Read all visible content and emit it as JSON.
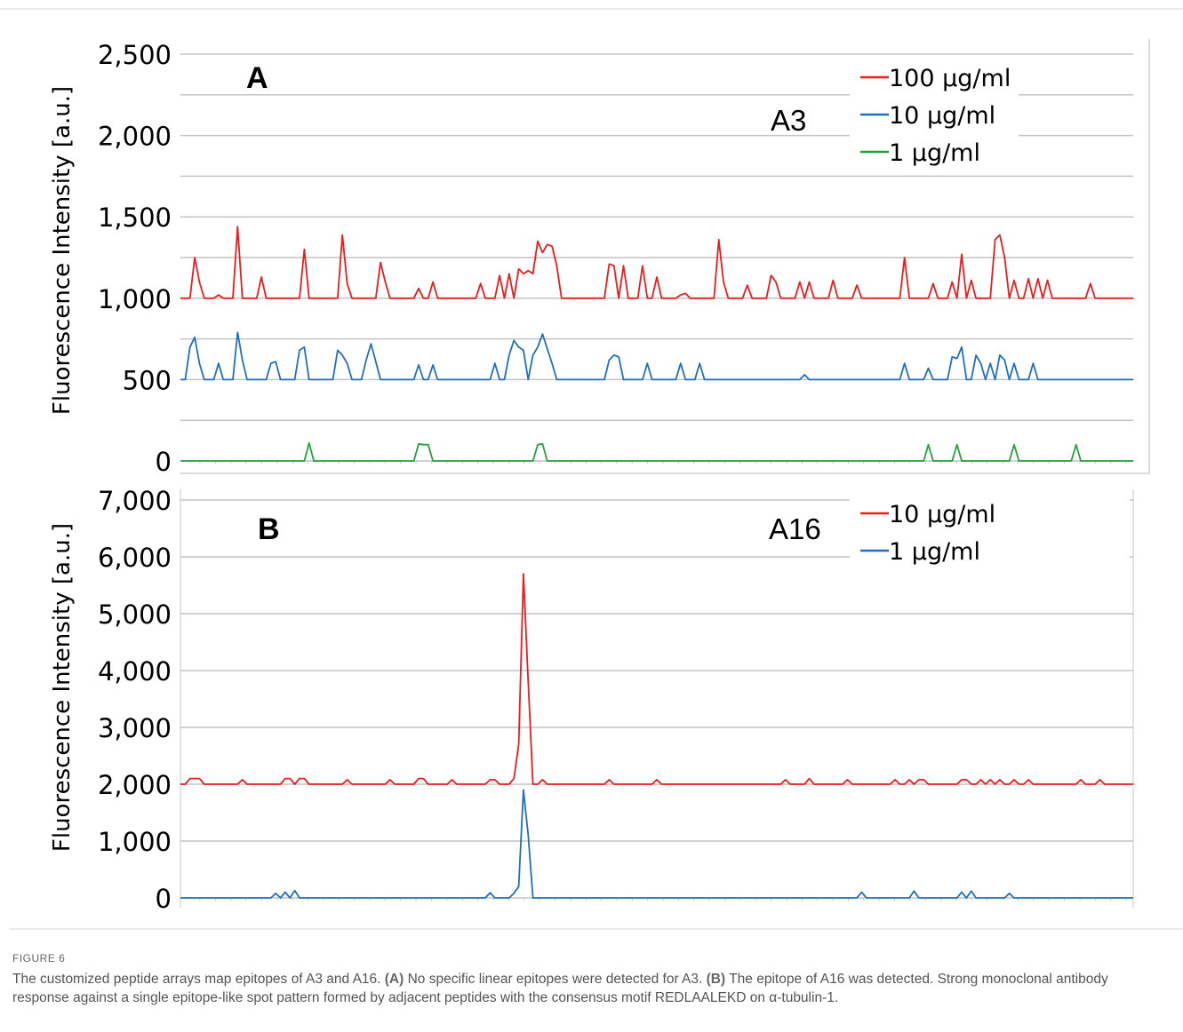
{
  "charts": [
    {
      "panel_label": "A",
      "antibody_label": "A3",
      "ylabel": "Fluorescence Intensity [a.u.]",
      "y_ticks": [
        "0",
        "500",
        "1,000",
        "1,500",
        "2,000",
        "2,500"
      ],
      "legend": [
        {
          "label": "100 µg/ml",
          "color": "#ee1c1c"
        },
        {
          "label": "10 µg/ml",
          "color": "#1f6fc4"
        },
        {
          "label": "1 µg/ml",
          "color": "#22a43a"
        }
      ]
    },
    {
      "panel_label": "B",
      "antibody_label": "A16",
      "ylabel": "Fluorescence Intensity [a.u.]",
      "y_ticks": [
        "0",
        "1,000",
        "2,000",
        "3,000",
        "4,000",
        "5,000",
        "6,000",
        "7,000"
      ],
      "legend": [
        {
          "label": "10 µg/ml",
          "color": "#ee1c1c"
        },
        {
          "label": "1 µg/ml",
          "color": "#1f6fc4"
        }
      ]
    }
  ],
  "chart_data": [
    {
      "type": "line",
      "title": "A",
      "annotation": "A3",
      "ylabel": "Fluorescence Intensity [a.u.]",
      "ylim": [
        0,
        2500
      ],
      "xlim": [
        0,
        200
      ],
      "grid": true,
      "legend_position": "top-right",
      "baselines": {
        "100 µg/ml": 1000,
        "10 µg/ml": 500,
        "1 µg/ml": 0
      },
      "series": [
        {
          "name": "100 µg/ml",
          "color": "#ee1c1c",
          "baseline": 1000,
          "peaks": [
            [
              3,
              1250
            ],
            [
              4,
              1100
            ],
            [
              8,
              1020
            ],
            [
              12,
              1440
            ],
            [
              17,
              1130
            ],
            [
              26,
              1300
            ],
            [
              34,
              1390
            ],
            [
              35,
              1090
            ],
            [
              42,
              1220
            ],
            [
              43,
              1100
            ],
            [
              50,
              1060
            ],
            [
              53,
              1100
            ],
            [
              63,
              1090
            ],
            [
              67,
              1140
            ],
            [
              69,
              1150
            ],
            [
              71,
              1180
            ],
            [
              72,
              1150
            ],
            [
              73,
              1170
            ],
            [
              74,
              1150
            ],
            [
              75,
              1350
            ],
            [
              76,
              1280
            ],
            [
              77,
              1330
            ],
            [
              78,
              1320
            ],
            [
              79,
              1200
            ],
            [
              90,
              1210
            ],
            [
              91,
              1200
            ],
            [
              93,
              1200
            ],
            [
              97,
              1200
            ],
            [
              100,
              1130
            ],
            [
              105,
              1020
            ],
            [
              106,
              1030
            ],
            [
              113,
              1360
            ],
            [
              114,
              1100
            ],
            [
              119,
              1080
            ],
            [
              124,
              1140
            ],
            [
              125,
              1100
            ],
            [
              130,
              1100
            ],
            [
              132,
              1100
            ],
            [
              137,
              1110
            ],
            [
              142,
              1080
            ],
            [
              152,
              1250
            ],
            [
              158,
              1090
            ],
            [
              162,
              1100
            ],
            [
              164,
              1270
            ],
            [
              166,
              1110
            ],
            [
              171,
              1360
            ],
            [
              172,
              1390
            ],
            [
              173,
              1250
            ],
            [
              175,
              1110
            ],
            [
              178,
              1120
            ],
            [
              180,
              1120
            ],
            [
              182,
              1110
            ],
            [
              191,
              1090
            ]
          ]
        },
        {
          "name": "10 µg/ml",
          "color": "#1f6fc4",
          "baseline": 500,
          "peaks": [
            [
              2,
              700
            ],
            [
              3,
              760
            ],
            [
              4,
              600
            ],
            [
              8,
              600
            ],
            [
              12,
              790
            ],
            [
              13,
              620
            ],
            [
              19,
              600
            ],
            [
              20,
              610
            ],
            [
              25,
              680
            ],
            [
              26,
              700
            ],
            [
              33,
              680
            ],
            [
              34,
              650
            ],
            [
              35,
              600
            ],
            [
              39,
              620
            ],
            [
              40,
              720
            ],
            [
              41,
              610
            ],
            [
              50,
              590
            ],
            [
              53,
              590
            ],
            [
              66,
              600
            ],
            [
              69,
              650
            ],
            [
              70,
              740
            ],
            [
              71,
              700
            ],
            [
              72,
              680
            ],
            [
              74,
              650
            ],
            [
              75,
              700
            ],
            [
              76,
              780
            ],
            [
              77,
              690
            ],
            [
              78,
              600
            ],
            [
              90,
              620
            ],
            [
              91,
              650
            ],
            [
              92,
              640
            ],
            [
              98,
              600
            ],
            [
              105,
              600
            ],
            [
              109,
              600
            ],
            [
              131,
              530
            ],
            [
              152,
              600
            ],
            [
              157,
              570
            ],
            [
              162,
              640
            ],
            [
              163,
              630
            ],
            [
              164,
              700
            ],
            [
              167,
              650
            ],
            [
              168,
              600
            ],
            [
              170,
              600
            ],
            [
              172,
              650
            ],
            [
              173,
              620
            ],
            [
              175,
              600
            ],
            [
              179,
              600
            ]
          ]
        },
        {
          "name": "1 µg/ml",
          "color": "#22a43a",
          "baseline": 0,
          "peaks": [
            [
              27,
              110
            ],
            [
              50,
              105
            ],
            [
              51,
              100
            ],
            [
              52,
              100
            ],
            [
              75,
              100
            ],
            [
              76,
              105
            ],
            [
              157,
              100
            ],
            [
              163,
              100
            ],
            [
              175,
              100
            ],
            [
              188,
              100
            ]
          ]
        }
      ]
    },
    {
      "type": "line",
      "title": "B",
      "annotation": "A16",
      "ylabel": "Fluorescence Intensity [a.u.]",
      "ylim": [
        0,
        7000
      ],
      "xlim": [
        0,
        200
      ],
      "grid": true,
      "legend_position": "top-right",
      "baselines": {
        "10 µg/ml": 2000,
        "1 µg/ml": 0
      },
      "series": [
        {
          "name": "10 µg/ml",
          "color": "#ee1c1c",
          "baseline": 2000,
          "peaks": [
            [
              2,
              2100
            ],
            [
              3,
              2100
            ],
            [
              4,
              2100
            ],
            [
              13,
              2080
            ],
            [
              22,
              2100
            ],
            [
              23,
              2100
            ],
            [
              25,
              2100
            ],
            [
              26,
              2100
            ],
            [
              35,
              2080
            ],
            [
              44,
              2080
            ],
            [
              50,
              2100
            ],
            [
              51,
              2100
            ],
            [
              57,
              2080
            ],
            [
              65,
              2080
            ],
            [
              66,
              2080
            ],
            [
              70,
              2100
            ],
            [
              71,
              2700
            ],
            [
              72,
              5700
            ],
            [
              73,
              3800
            ],
            [
              76,
              2080
            ],
            [
              90,
              2080
            ],
            [
              100,
              2080
            ],
            [
              127,
              2080
            ],
            [
              132,
              2100
            ],
            [
              140,
              2080
            ],
            [
              150,
              2080
            ],
            [
              153,
              2080
            ],
            [
              155,
              2080
            ],
            [
              156,
              2080
            ],
            [
              164,
              2080
            ],
            [
              165,
              2080
            ],
            [
              168,
              2080
            ],
            [
              170,
              2080
            ],
            [
              172,
              2080
            ],
            [
              175,
              2080
            ],
            [
              178,
              2080
            ],
            [
              189,
              2080
            ],
            [
              193,
              2080
            ]
          ]
        },
        {
          "name": "1 µg/ml",
          "color": "#1f6fc4",
          "baseline": 0,
          "peaks": [
            [
              20,
              80
            ],
            [
              22,
              100
            ],
            [
              24,
              130
            ],
            [
              65,
              90
            ],
            [
              70,
              80
            ],
            [
              71,
              200
            ],
            [
              72,
              1900
            ],
            [
              73,
              1100
            ],
            [
              143,
              100
            ],
            [
              154,
              120
            ],
            [
              164,
              100
            ],
            [
              166,
              120
            ],
            [
              174,
              80
            ]
          ]
        }
      ]
    }
  ],
  "caption": {
    "figure_label": "FIGURE 6",
    "lead": "The customized peptide arrays map epitopes of A3 and A16.",
    "a_label": "(A)",
    "a_text": "No specific linear epitopes were detected for A3.",
    "b_label": "(B)",
    "b_text": "The epitope of A16 was detected. Strong monoclonal antibody response against a single epitope-like spot pattern formed by adjacent peptides with the consensus motif REDLAALEKD on α-tubulin-1."
  }
}
